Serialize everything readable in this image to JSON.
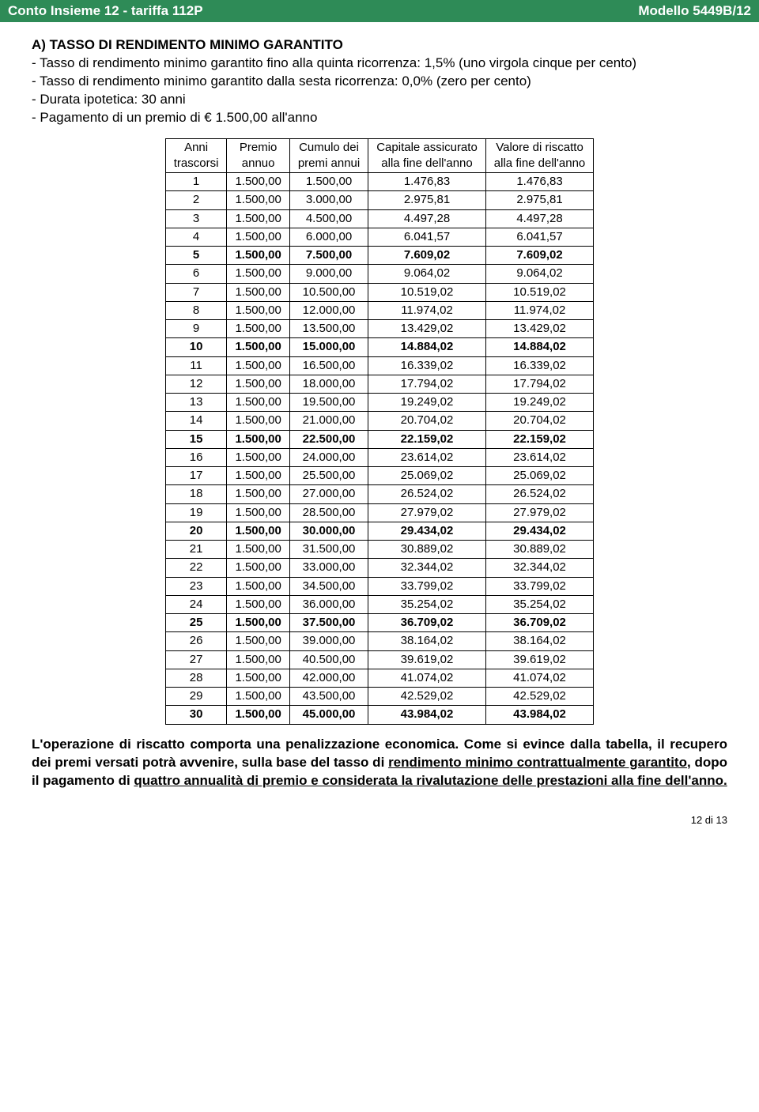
{
  "header": {
    "left": "Conto Insieme 12 - tariffa 112P",
    "right": "Modello 5449B/12",
    "bg_color": "#2e8b57",
    "text_color": "#ffffff"
  },
  "section": {
    "title": "A) TASSO DI RENDIMENTO MINIMO GARANTITO",
    "lines": [
      "-   Tasso di rendimento minimo garantito fino alla quinta ricorrenza: 1,5% (uno virgola cinque per cento)",
      "-   Tasso di rendimento minimo garantito dalla sesta ricorrenza: 0,0% (zero per cento)",
      "-   Durata ipotetica: 30 anni",
      "-   Pagamento di un premio di € 1.500,00 all'anno"
    ]
  },
  "table": {
    "columns": [
      {
        "line1": "Anni",
        "line2": "trascorsi"
      },
      {
        "line1": "Premio",
        "line2": "annuo"
      },
      {
        "line1": "Cumulo dei",
        "line2": "premi annui"
      },
      {
        "line1": "Capitale assicurato",
        "line2": "alla fine dell'anno"
      },
      {
        "line1": "Valore di riscatto",
        "line2": "alla fine dell'anno"
      }
    ],
    "rows": [
      {
        "cells": [
          "1",
          "1.500,00",
          "1.500,00",
          "1.476,83",
          "1.476,83"
        ],
        "bold": false
      },
      {
        "cells": [
          "2",
          "1.500,00",
          "3.000,00",
          "2.975,81",
          "2.975,81"
        ],
        "bold": false
      },
      {
        "cells": [
          "3",
          "1.500,00",
          "4.500,00",
          "4.497,28",
          "4.497,28"
        ],
        "bold": false
      },
      {
        "cells": [
          "4",
          "1.500,00",
          "6.000,00",
          "6.041,57",
          "6.041,57"
        ],
        "bold": false
      },
      {
        "cells": [
          "5",
          "1.500,00",
          "7.500,00",
          "7.609,02",
          "7.609,02"
        ],
        "bold": true
      },
      {
        "cells": [
          "6",
          "1.500,00",
          "9.000,00",
          "9.064,02",
          "9.064,02"
        ],
        "bold": false
      },
      {
        "cells": [
          "7",
          "1.500,00",
          "10.500,00",
          "10.519,02",
          "10.519,02"
        ],
        "bold": false
      },
      {
        "cells": [
          "8",
          "1.500,00",
          "12.000,00",
          "11.974,02",
          "11.974,02"
        ],
        "bold": false
      },
      {
        "cells": [
          "9",
          "1.500,00",
          "13.500,00",
          "13.429,02",
          "13.429,02"
        ],
        "bold": false
      },
      {
        "cells": [
          "10",
          "1.500,00",
          "15.000,00",
          "14.884,02",
          "14.884,02"
        ],
        "bold": true
      },
      {
        "cells": [
          "11",
          "1.500,00",
          "16.500,00",
          "16.339,02",
          "16.339,02"
        ],
        "bold": false
      },
      {
        "cells": [
          "12",
          "1.500,00",
          "18.000,00",
          "17.794,02",
          "17.794,02"
        ],
        "bold": false
      },
      {
        "cells": [
          "13",
          "1.500,00",
          "19.500,00",
          "19.249,02",
          "19.249,02"
        ],
        "bold": false
      },
      {
        "cells": [
          "14",
          "1.500,00",
          "21.000,00",
          "20.704,02",
          "20.704,02"
        ],
        "bold": false
      },
      {
        "cells": [
          "15",
          "1.500,00",
          "22.500,00",
          "22.159,02",
          "22.159,02"
        ],
        "bold": true
      },
      {
        "cells": [
          "16",
          "1.500,00",
          "24.000,00",
          "23.614,02",
          "23.614,02"
        ],
        "bold": false
      },
      {
        "cells": [
          "17",
          "1.500,00",
          "25.500,00",
          "25.069,02",
          "25.069,02"
        ],
        "bold": false
      },
      {
        "cells": [
          "18",
          "1.500,00",
          "27.000,00",
          "26.524,02",
          "26.524,02"
        ],
        "bold": false
      },
      {
        "cells": [
          "19",
          "1.500,00",
          "28.500,00",
          "27.979,02",
          "27.979,02"
        ],
        "bold": false
      },
      {
        "cells": [
          "20",
          "1.500,00",
          "30.000,00",
          "29.434,02",
          "29.434,02"
        ],
        "bold": true
      },
      {
        "cells": [
          "21",
          "1.500,00",
          "31.500,00",
          "30.889,02",
          "30.889,02"
        ],
        "bold": false
      },
      {
        "cells": [
          "22",
          "1.500,00",
          "33.000,00",
          "32.344,02",
          "32.344,02"
        ],
        "bold": false
      },
      {
        "cells": [
          "23",
          "1.500,00",
          "34.500,00",
          "33.799,02",
          "33.799,02"
        ],
        "bold": false
      },
      {
        "cells": [
          "24",
          "1.500,00",
          "36.000,00",
          "35.254,02",
          "35.254,02"
        ],
        "bold": false
      },
      {
        "cells": [
          "25",
          "1.500,00",
          "37.500,00",
          "36.709,02",
          "36.709,02"
        ],
        "bold": true
      },
      {
        "cells": [
          "26",
          "1.500,00",
          "39.000,00",
          "38.164,02",
          "38.164,02"
        ],
        "bold": false
      },
      {
        "cells": [
          "27",
          "1.500,00",
          "40.500,00",
          "39.619,02",
          "39.619,02"
        ],
        "bold": false
      },
      {
        "cells": [
          "28",
          "1.500,00",
          "42.000,00",
          "41.074,02",
          "41.074,02"
        ],
        "bold": false
      },
      {
        "cells": [
          "29",
          "1.500,00",
          "43.500,00",
          "42.529,02",
          "42.529,02"
        ],
        "bold": false
      },
      {
        "cells": [
          "30",
          "1.500,00",
          "45.000,00",
          "43.984,02",
          "43.984,02"
        ],
        "bold": true
      }
    ]
  },
  "closing": {
    "pre": "L'operazione di riscatto comporta una penalizzazione economica. Come si evince dalla tabella, il recupero dei premi versati potrà avvenire, sulla base del tasso di ",
    "u1": "rendimento minimo contrattualmente garantito",
    "mid": ", dopo il pagamento di ",
    "u2": "quattro annualità di premio e considerata la rivalutazione delle prestazioni alla fine dell'anno.",
    "post": ""
  },
  "page_number": "12 di 13"
}
